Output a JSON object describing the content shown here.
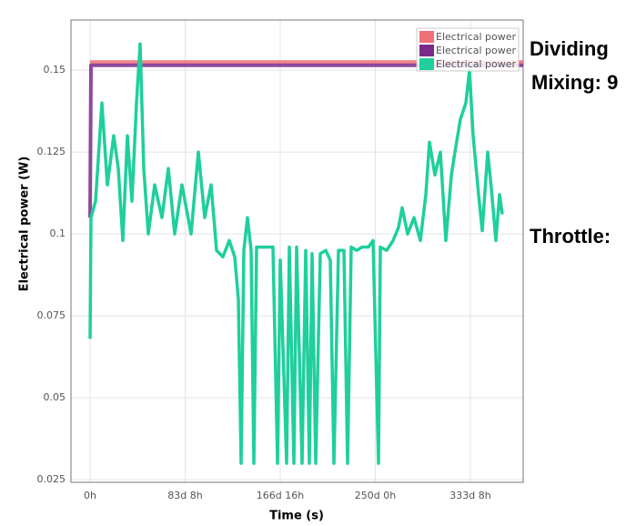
{
  "chart_data": {
    "type": "line",
    "y_label": "Electrical power (W)",
    "x_label": "Time (s)",
    "xlim": [
      -402,
      9110
    ],
    "ylim": [
      0.0242,
      0.1653
    ],
    "xticks": [
      {
        "value": 0,
        "label": "0h"
      },
      {
        "value": 2000,
        "label": "83d 8h"
      },
      {
        "value": 4000,
        "label": "166d 16h"
      },
      {
        "value": 6000,
        "label": "250d 0h"
      },
      {
        "value": 8000,
        "label": "333d 8h"
      }
    ],
    "yticks": [
      0.025,
      0.05,
      0.075,
      0.1,
      0.125,
      0.15
    ],
    "grid": true,
    "legend": "top-right",
    "x": [
      0,
      19,
      115,
      249,
      364,
      498,
      593,
      689,
      785,
      880,
      976,
      1053,
      1129,
      1225,
      1359,
      1512,
      1646,
      1780,
      1933,
      2124,
      2278,
      2412,
      2545,
      2660,
      2794,
      2928,
      3043,
      3120,
      3177,
      3235,
      3311,
      3388,
      3445,
      3503,
      3847,
      3943,
      4000,
      4134,
      4192,
      4287,
      4345,
      4460,
      4536,
      4613,
      4670,
      4747,
      4842,
      4957,
      5053,
      5130,
      5225,
      5340,
      5417,
      5493,
      5608,
      5723,
      5857,
      5953,
      6067,
      6106,
      6240,
      6374,
      6488,
      6565,
      6680,
      6814,
      6948,
      7063,
      7139,
      7254,
      7369,
      7484,
      7599,
      7675,
      7790,
      7905,
      7981,
      8058,
      8173,
      8249,
      8364,
      8440,
      8536,
      8613,
      8670
    ],
    "series": [
      {
        "name": "Electrical power",
        "color": "#f07078",
        "x": [
          0,
          9110
        ],
        "values": [
          0.1525,
          0.1525
        ]
      },
      {
        "name": "Electrical power",
        "color": "#7b2a8c",
        "x": [
          0,
          19,
          9110
        ],
        "values": [
          0.105,
          0.1515,
          0.1515
        ]
      },
      {
        "name": "Electrical power",
        "color": "#1fcf9c",
        "values": [
          0.068,
          0.105,
          0.11,
          0.14,
          0.115,
          0.13,
          0.12,
          0.098,
          0.13,
          0.11,
          0.14,
          0.158,
          0.12,
          0.1,
          0.115,
          0.105,
          0.12,
          0.1,
          0.115,
          0.1,
          0.125,
          0.105,
          0.115,
          0.095,
          0.093,
          0.098,
          0.093,
          0.08,
          0.03,
          0.095,
          0.105,
          0.095,
          0.03,
          0.096,
          0.096,
          0.03,
          0.092,
          0.03,
          0.096,
          0.03,
          0.096,
          0.03,
          0.095,
          0.03,
          0.094,
          0.03,
          0.094,
          0.095,
          0.092,
          0.03,
          0.095,
          0.095,
          0.03,
          0.096,
          0.095,
          0.096,
          0.096,
          0.098,
          0.03,
          0.096,
          0.095,
          0.098,
          0.102,
          0.108,
          0.1,
          0.105,
          0.098,
          0.112,
          0.128,
          0.118,
          0.125,
          0.098,
          0.118,
          0.125,
          0.135,
          0.14,
          0.15,
          0.13,
          0.112,
          0.101,
          0.125,
          0.114,
          0.098,
          0.112,
          0.106
        ]
      }
    ],
    "annotations": [
      "Dividing",
      "Mixing: 9",
      "Throttle:"
    ]
  }
}
